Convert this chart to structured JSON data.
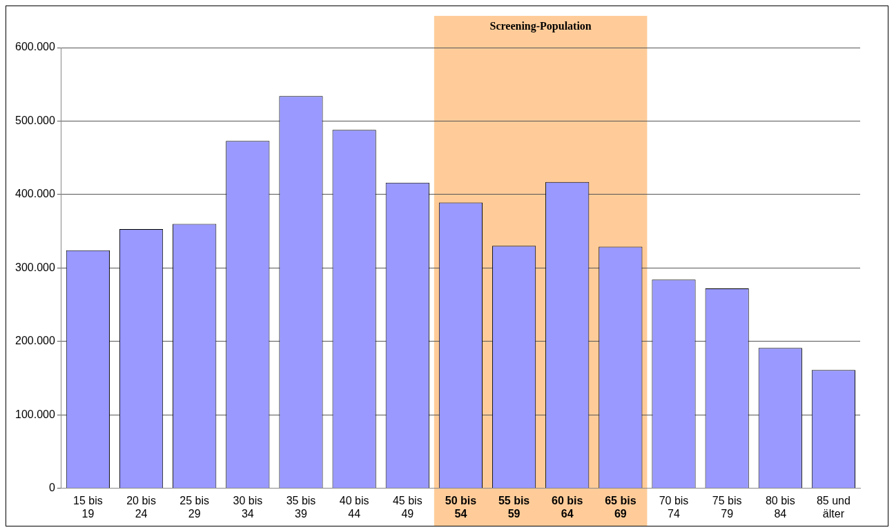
{
  "chart_data": {
    "type": "bar",
    "categories": [
      "15 bis 19",
      "20 bis 24",
      "25 bis 29",
      "30 bis 34",
      "35 bis 39",
      "40 bis 44",
      "45 bis 49",
      "50 bis 54",
      "55 bis 59",
      "60 bis 64",
      "65 bis 69",
      "70 bis 74",
      "75 bis 79",
      "80 bis 84",
      "85 und älter"
    ],
    "values": [
      324000,
      353000,
      360000,
      473000,
      534000,
      488000,
      416000,
      389000,
      330000,
      417000,
      329000,
      284000,
      272000,
      191000,
      161000
    ],
    "color": "#9999ff",
    "ylim": [
      0,
      600000
    ],
    "yticks": [
      {
        "value": 0,
        "label": "0"
      },
      {
        "value": 100000,
        "label": "100.000"
      },
      {
        "value": 200000,
        "label": "200.000"
      },
      {
        "value": 300000,
        "label": "300.000"
      },
      {
        "value": 400000,
        "label": "400.000"
      },
      {
        "value": 500000,
        "label": "500.000"
      },
      {
        "value": 600000,
        "label": "600.000"
      }
    ],
    "grid": "y",
    "legend": false,
    "bands": [
      {
        "axis": "x",
        "from": "50 bis 54",
        "to": "65 bis 69",
        "label": "Screening-Population",
        "color": "#ffcc99"
      }
    ]
  }
}
